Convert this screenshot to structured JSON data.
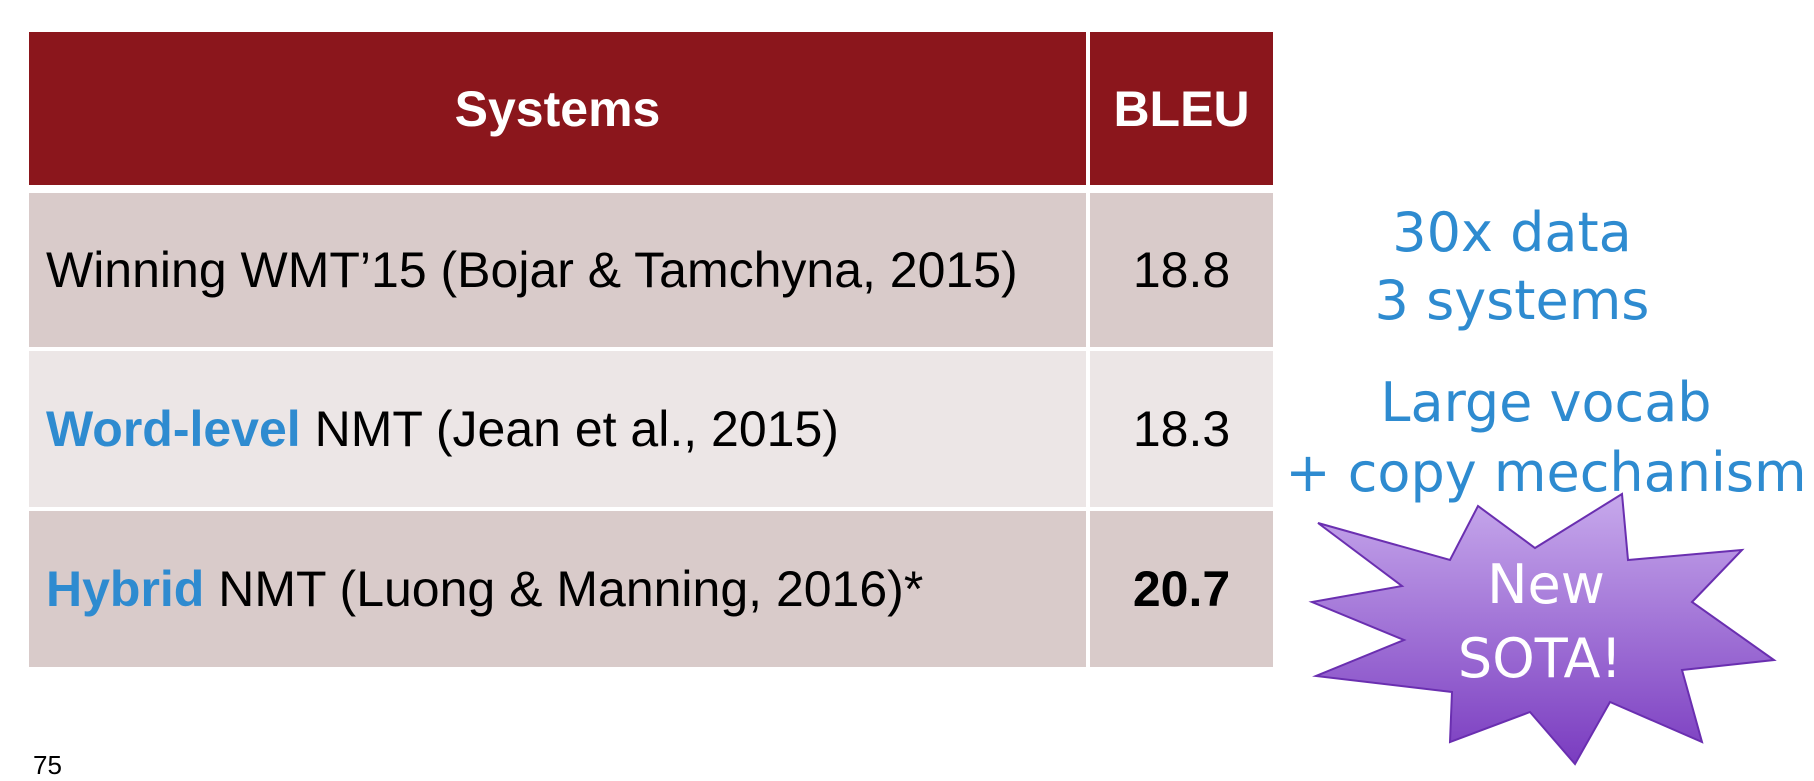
{
  "table": {
    "header": [
      "Systems",
      "BLEU"
    ],
    "rows": [
      {
        "highlight": null,
        "system": "Winning WMT’15 (Bojar & Tamchyna, 2015)",
        "bleu": "18.8"
      },
      {
        "highlight": "Word-level",
        "system": " NMT (Jean et al., 2015)",
        "bleu": "18.3"
      },
      {
        "highlight": "Hybrid",
        "system": " NMT (Luong & Manning, 2016)*",
        "bleu": "20.7"
      }
    ]
  },
  "annotations": {
    "first": [
      "30x data",
      "3 systems"
    ],
    "second": [
      "Large vocab",
      "+ copy mechanism"
    ],
    "starburst": [
      "New",
      "SOTA!"
    ]
  },
  "page_number": "75"
}
